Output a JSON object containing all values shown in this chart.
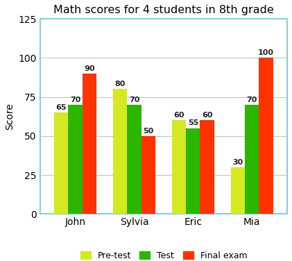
{
  "title": "Math scores for 4 students in 8th grade",
  "categories": [
    "John",
    "Sylvia",
    "Eric",
    "Mia"
  ],
  "series": {
    "Pre-test": [
      65,
      80,
      60,
      30
    ],
    "Test": [
      70,
      70,
      55,
      70
    ],
    "Final exam": [
      90,
      50,
      60,
      100
    ]
  },
  "series_colors": {
    "Pre-test": "#d4e823",
    "Test": "#2db600",
    "Final exam": "#ff3300"
  },
  "ylabel": "Score",
  "ylim": [
    0,
    125
  ],
  "yticks": [
    0,
    25,
    50,
    75,
    100,
    125
  ],
  "bar_width": 0.24,
  "spine_color": "#7fd4e8",
  "background_color": "#ffffff",
  "plot_bg_color": "#ffffff",
  "grid_color": "#b0c4cc",
  "title_fontsize": 11.5,
  "label_fontsize": 10,
  "tick_fontsize": 10,
  "value_fontsize": 8,
  "legend_fontsize": 9
}
